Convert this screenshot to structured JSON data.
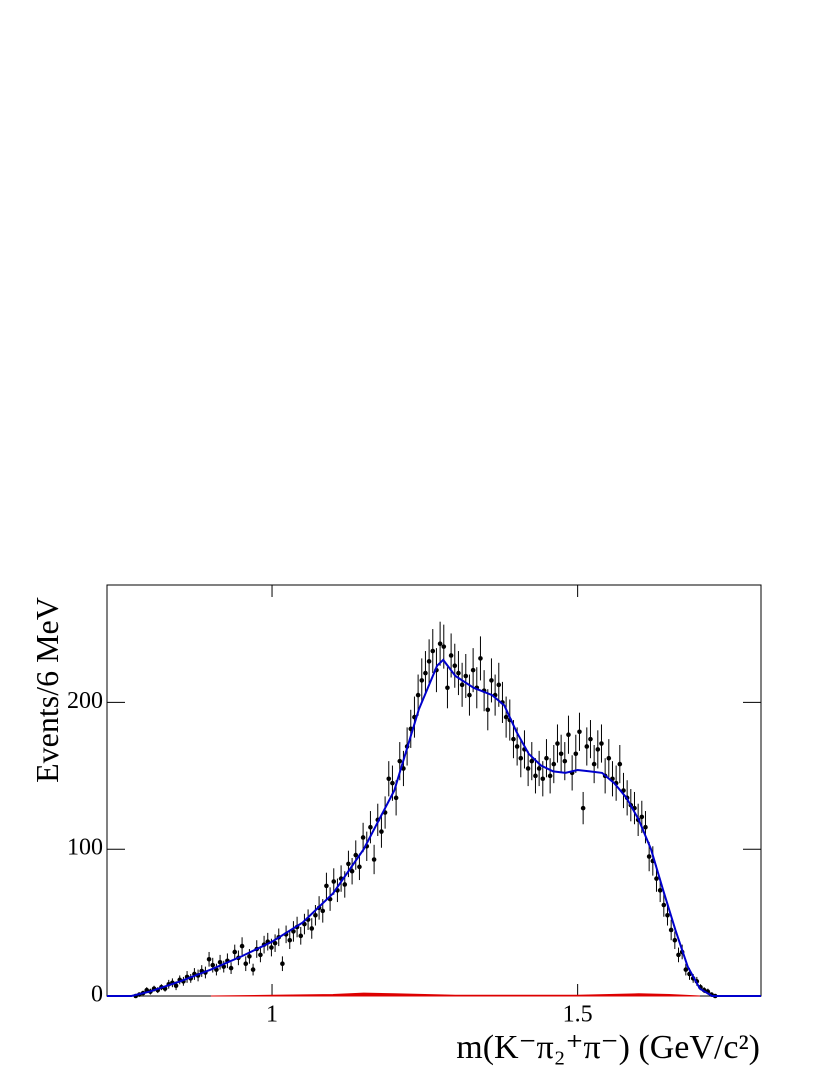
{
  "chart_data": {
    "type": "errorbar",
    "y_label": "Events/6 MeV",
    "x_label": "m(K⁻π₂⁺π⁻) (GeV/c²)",
    "xlim": [
      0.73,
      1.8
    ],
    "ylim": [
      0,
      280
    ],
    "xticks": [
      1,
      1.5
    ],
    "yticks": [
      0,
      100,
      200
    ],
    "color": "#000000",
    "x": [
      0.777,
      0.783,
      0.789,
      0.795,
      0.801,
      0.807,
      0.813,
      0.819,
      0.825,
      0.831,
      0.837,
      0.843,
      0.849,
      0.855,
      0.861,
      0.867,
      0.873,
      0.879,
      0.885,
      0.891,
      0.897,
      0.903,
      0.909,
      0.915,
      0.921,
      0.927,
      0.933,
      0.939,
      0.945,
      0.951,
      0.957,
      0.963,
      0.969,
      0.975,
      0.981,
      0.987,
      0.993,
      0.999,
      1.005,
      1.011,
      1.017,
      1.023,
      1.029,
      1.035,
      1.041,
      1.047,
      1.053,
      1.059,
      1.065,
      1.071,
      1.077,
      1.083,
      1.089,
      1.095,
      1.101,
      1.107,
      1.113,
      1.119,
      1.125,
      1.131,
      1.137,
      1.143,
      1.149,
      1.155,
      1.161,
      1.167,
      1.173,
      1.179,
      1.185,
      1.191,
      1.197,
      1.203,
      1.209,
      1.215,
      1.221,
      1.227,
      1.233,
      1.239,
      1.245,
      1.251,
      1.257,
      1.263,
      1.269,
      1.275,
      1.281,
      1.287,
      1.293,
      1.299,
      1.305,
      1.311,
      1.317,
      1.323,
      1.329,
      1.335,
      1.341,
      1.347,
      1.353,
      1.359,
      1.365,
      1.371,
      1.377,
      1.383,
      1.389,
      1.395,
      1.401,
      1.407,
      1.413,
      1.419,
      1.425,
      1.431,
      1.437,
      1.443,
      1.449,
      1.455,
      1.461,
      1.467,
      1.473,
      1.479,
      1.485,
      1.491,
      1.497,
      1.503,
      1.509,
      1.515,
      1.521,
      1.527,
      1.533,
      1.539,
      1.545,
      1.551,
      1.557,
      1.563,
      1.569,
      1.575,
      1.581,
      1.587,
      1.593,
      1.599,
      1.605,
      1.611,
      1.617,
      1.623,
      1.629,
      1.635,
      1.641,
      1.647,
      1.653,
      1.659,
      1.665,
      1.671,
      1.677,
      1.683,
      1.689,
      1.695,
      1.701,
      1.707,
      1.713,
      1.719,
      1.725
    ],
    "values": [
      0,
      1,
      2,
      4,
      3,
      5,
      4,
      6,
      5,
      8,
      9,
      7,
      11,
      10,
      13,
      12,
      15,
      14,
      17,
      16,
      25,
      21,
      18,
      23,
      20,
      24,
      19,
      30,
      26,
      34,
      22,
      27,
      18,
      32,
      28,
      35,
      37,
      33,
      36,
      40,
      22,
      42,
      38,
      44,
      47,
      41,
      49,
      52,
      46,
      55,
      60,
      58,
      75,
      66,
      78,
      72,
      80,
      76,
      90,
      85,
      96,
      88,
      108,
      102,
      115,
      93,
      120,
      112,
      125,
      148,
      145,
      135,
      160,
      155,
      170,
      182,
      190,
      205,
      215,
      220,
      228,
      235,
      222,
      240,
      238,
      210,
      232,
      225,
      220,
      212,
      218,
      205,
      222,
      210,
      230,
      208,
      195,
      215,
      205,
      212,
      200,
      190,
      188,
      175,
      170,
      162,
      168,
      155,
      160,
      150,
      155,
      148,
      162,
      150,
      158,
      172,
      165,
      160,
      178,
      152,
      165,
      180,
      128,
      170,
      175,
      158,
      168,
      172,
      150,
      162,
      148,
      145,
      158,
      140,
      135,
      130,
      128,
      120,
      122,
      115,
      95,
      92,
      80,
      72,
      62,
      55,
      45,
      38,
      28,
      30,
      18,
      15,
      12,
      10,
      6,
      4,
      3,
      1,
      0
    ],
    "errors": [
      0,
      1,
      1,
      2,
      2,
      2,
      2,
      2,
      2,
      3,
      3,
      3,
      3,
      3,
      4,
      3,
      4,
      4,
      4,
      4,
      5,
      5,
      4,
      5,
      4,
      5,
      4,
      5,
      5,
      6,
      5,
      5,
      4,
      6,
      5,
      6,
      6,
      6,
      6,
      6,
      5,
      6,
      6,
      7,
      7,
      6,
      7,
      7,
      7,
      7,
      8,
      8,
      9,
      8,
      9,
      8,
      9,
      9,
      9,
      9,
      10,
      9,
      10,
      10,
      11,
      10,
      11,
      11,
      11,
      12,
      12,
      12,
      13,
      12,
      13,
      13,
      14,
      14,
      15,
      15,
      15,
      15,
      15,
      15,
      15,
      14,
      15,
      15,
      15,
      15,
      15,
      14,
      15,
      14,
      15,
      14,
      14,
      15,
      14,
      15,
      14,
      14,
      14,
      13,
      13,
      13,
      13,
      12,
      13,
      12,
      12,
      12,
      13,
      12,
      13,
      13,
      13,
      13,
      13,
      12,
      13,
      13,
      11,
      13,
      13,
      13,
      13,
      13,
      12,
      13,
      12,
      12,
      13,
      12,
      12,
      11,
      11,
      11,
      11,
      11,
      10,
      10,
      9,
      8,
      8,
      7,
      7,
      6,
      5,
      5,
      4,
      4,
      3,
      3,
      2,
      2,
      2,
      1,
      0
    ],
    "fit": {
      "type": "line",
      "color": "#0000cc",
      "x": [
        0.73,
        0.77,
        0.8,
        0.85,
        0.9,
        0.95,
        1.0,
        1.05,
        1.1,
        1.15,
        1.2,
        1.24,
        1.27,
        1.28,
        1.3,
        1.33,
        1.36,
        1.38,
        1.4,
        1.42,
        1.44,
        1.46,
        1.48,
        1.5,
        1.52,
        1.54,
        1.56,
        1.58,
        1.6,
        1.62,
        1.64,
        1.66,
        1.68,
        1.7,
        1.72,
        1.8
      ],
      "values": [
        0,
        0,
        3,
        10,
        18,
        27,
        37,
        50,
        70,
        100,
        140,
        195,
        225,
        229,
        218,
        210,
        205,
        198,
        180,
        165,
        157,
        153,
        152,
        154,
        153,
        152,
        145,
        135,
        120,
        100,
        72,
        45,
        20,
        5,
        0,
        0
      ]
    },
    "background": {
      "type": "area",
      "color": "#dd0000",
      "x": [
        0.9,
        1.0,
        1.1,
        1.15,
        1.2,
        1.3,
        1.5,
        1.6,
        1.65,
        1.7
      ],
      "values": [
        0,
        0.5,
        1,
        2,
        1.5,
        0.5,
        0.5,
        1.5,
        1,
        0
      ]
    }
  }
}
